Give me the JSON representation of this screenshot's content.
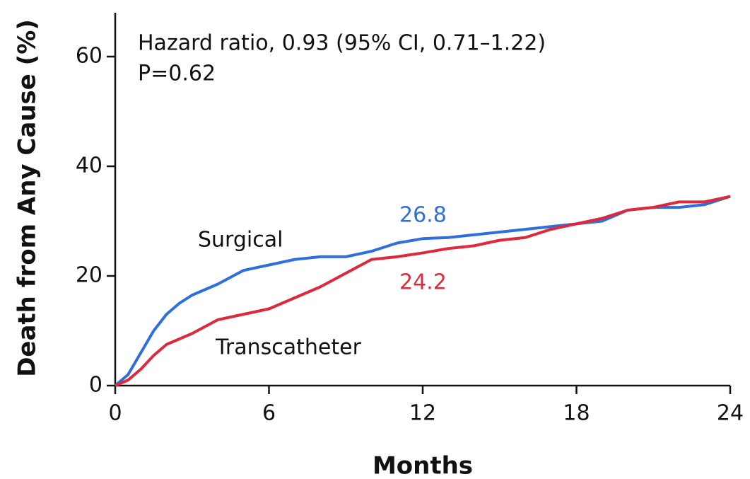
{
  "chart_data": {
    "type": "line",
    "xlabel": "Months",
    "ylabel": "Death from Any Cause (%)",
    "xlim": [
      0,
      24
    ],
    "xticks": [
      0,
      6,
      12,
      18,
      24
    ],
    "ylim": [
      0,
      68
    ],
    "yticks": [
      0,
      20,
      40,
      60
    ],
    "annotations": [
      {
        "text": "Hazard ratio, 0.93 (95% CI, 0.71–1.22)"
      },
      {
        "text": "P=0.62"
      },
      {
        "text": "Surgical"
      },
      {
        "text": "Transcatheter"
      },
      {
        "text": "26.8",
        "color": "#2e6fe0"
      },
      {
        "text": "24.2",
        "color": "#e0283c"
      }
    ],
    "series": [
      {
        "name": "Surgical",
        "color": "#2e6fe0",
        "x": [
          0,
          0.5,
          1,
          1.5,
          2,
          2.5,
          3,
          4,
          5,
          6,
          7,
          8,
          9,
          10,
          11,
          12,
          13,
          14,
          15,
          16,
          17,
          18,
          19,
          20,
          21,
          22,
          23,
          24
        ],
        "values": [
          0,
          2,
          6,
          10,
          13,
          15,
          16.5,
          18.5,
          21,
          22,
          23,
          23.5,
          23.5,
          24.5,
          26,
          26.8,
          27,
          27.5,
          28,
          28.5,
          29,
          29.5,
          30,
          32,
          32.5,
          32.5,
          33,
          34.5
        ]
      },
      {
        "name": "Transcatheter",
        "color": "#e0283c",
        "x": [
          0,
          0.5,
          1,
          1.5,
          2,
          3,
          4,
          5,
          6,
          7,
          8,
          9,
          10,
          11,
          12,
          13,
          14,
          15,
          16,
          17,
          18,
          19,
          20,
          21,
          22,
          23,
          24
        ],
        "values": [
          0,
          1,
          3,
          5.5,
          7.5,
          9.5,
          12,
          13,
          14,
          16,
          18,
          20.5,
          23,
          23.5,
          24.2,
          25,
          25.5,
          26.5,
          27,
          28.5,
          29.5,
          30.5,
          32,
          32.5,
          33.5,
          33.5,
          34.5
        ]
      }
    ]
  }
}
